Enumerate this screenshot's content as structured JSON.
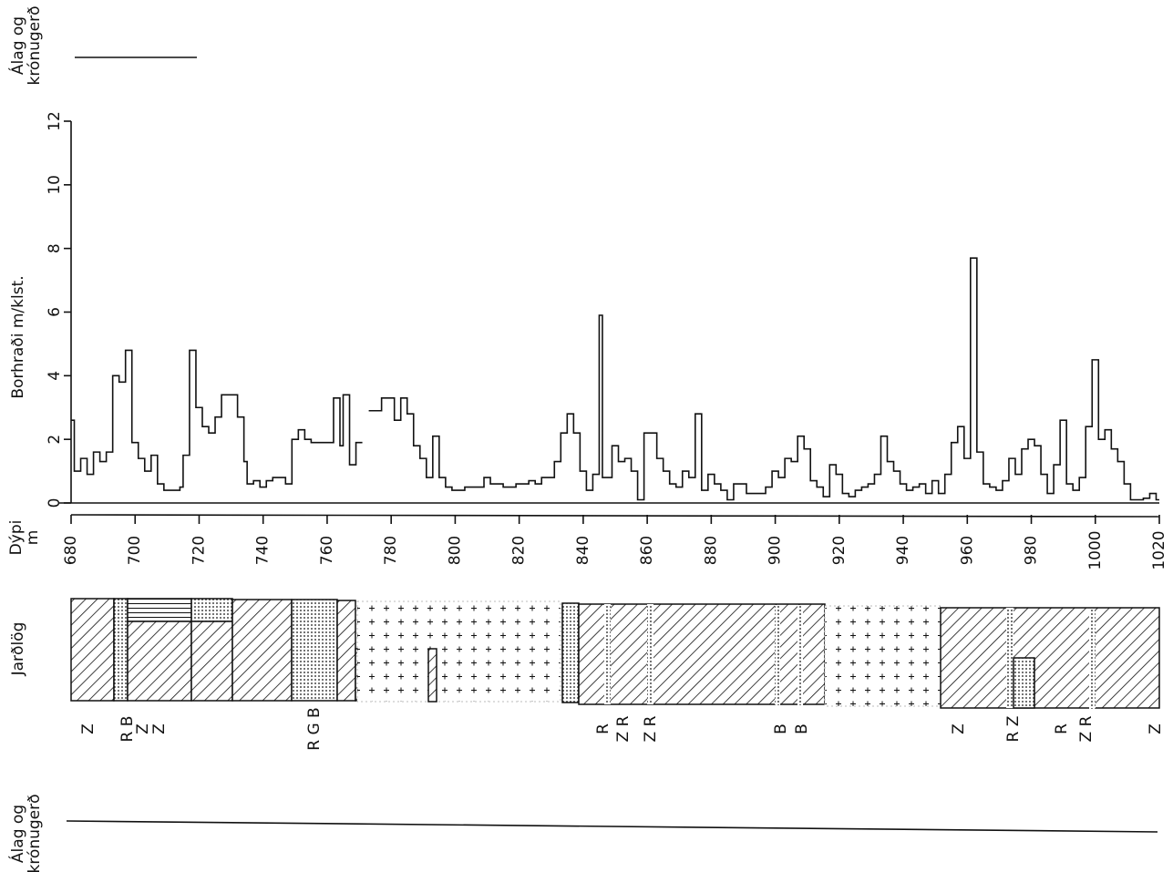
{
  "chart_data": {
    "type": "step",
    "y_label": "Borhraði m/klst.",
    "x_label": [
      "Dýpi",
      "m"
    ],
    "strata_label": "Jarðlög",
    "load_label_top": [
      "Álag og",
      "krónugerð"
    ],
    "load_label_bottom": [
      "Álag og",
      "krónugerð"
    ],
    "x": [
      680,
      681,
      683,
      685,
      687,
      689,
      691,
      693,
      695,
      697,
      699,
      701,
      703,
      705,
      707,
      709,
      714,
      715,
      717,
      719,
      721,
      723,
      725,
      727,
      732,
      734,
      735,
      737,
      739,
      741,
      743,
      747,
      749,
      751,
      753,
      755,
      762,
      764,
      765,
      767,
      769,
      771,
      773,
      777,
      781,
      783,
      785,
      787,
      789,
      791,
      793,
      795,
      797,
      799,
      803,
      805,
      809,
      811,
      815,
      819,
      823,
      825,
      827,
      831,
      833,
      835,
      837,
      839,
      841,
      843,
      845,
      846,
      849,
      851,
      853,
      855,
      857,
      859,
      863,
      865,
      867,
      869,
      871,
      873,
      875,
      877,
      879,
      881,
      883,
      885,
      887,
      891,
      893,
      897,
      899,
      901,
      903,
      905,
      907,
      909,
      911,
      913,
      915,
      917,
      919,
      921,
      923,
      925,
      927,
      929,
      931,
      933,
      935,
      937,
      939,
      941,
      943,
      945,
      947,
      949,
      951,
      953,
      955,
      957,
      959,
      961,
      963,
      965,
      967,
      969,
      971,
      973,
      975,
      977,
      979,
      981,
      983,
      985,
      987,
      989,
      991,
      993,
      995,
      997,
      999,
      1001,
      1003,
      1005,
      1007,
      1009,
      1011,
      1013,
      1015,
      1017,
      1019
    ],
    "values": [
      2.6,
      1.0,
      1.4,
      0.9,
      1.6,
      1.3,
      1.6,
      4.0,
      3.8,
      4.8,
      1.9,
      1.4,
      1.0,
      1.5,
      0.6,
      0.4,
      0.5,
      1.5,
      4.8,
      3.0,
      2.4,
      2.2,
      2.7,
      3.4,
      2.7,
      1.3,
      0.6,
      0.7,
      0.5,
      0.7,
      0.8,
      0.6,
      2.0,
      2.3,
      2.0,
      1.9,
      3.3,
      1.8,
      3.4,
      1.2,
      1.9,
      null,
      2.9,
      3.3,
      2.6,
      3.3,
      2.8,
      1.8,
      1.4,
      0.8,
      2.1,
      0.8,
      0.5,
      0.4,
      0.5,
      0.5,
      0.8,
      0.6,
      0.5,
      0.6,
      0.7,
      0.6,
      0.8,
      1.3,
      2.2,
      2.8,
      2.2,
      1.0,
      0.4,
      0.9,
      5.9,
      0.8,
      1.8,
      1.3,
      1.4,
      1.0,
      0.1,
      2.2,
      1.4,
      1.0,
      0.6,
      0.5,
      1.0,
      0.8,
      2.8,
      0.4,
      0.9,
      0.6,
      0.4,
      0.1,
      0.6,
      0.3,
      0.3,
      0.5,
      1.0,
      0.8,
      1.4,
      1.3,
      2.1,
      1.7,
      0.7,
      0.5,
      0.2,
      1.2,
      0.9,
      0.3,
      0.2,
      0.4,
      0.5,
      0.6,
      0.9,
      2.1,
      1.3,
      1.0,
      0.6,
      0.4,
      0.5,
      0.6,
      0.3,
      0.7,
      0.3,
      0.9,
      1.9,
      2.4,
      1.4,
      7.7,
      1.6,
      0.6,
      0.5,
      0.4,
      0.7,
      1.4,
      0.9,
      1.7,
      2.0,
      1.8,
      0.9,
      0.3,
      1.2,
      2.6,
      0.6,
      0.4,
      0.8,
      2.4,
      4.5,
      2.0,
      2.3,
      1.7,
      1.3,
      0.6,
      0.1,
      0.1,
      0.15,
      0.3,
      0.1
    ],
    "color": "#111111",
    "xlim": [
      680,
      1020
    ],
    "ylim": [
      0,
      12
    ],
    "xticks": [
      680,
      700,
      720,
      740,
      760,
      780,
      800,
      820,
      840,
      860,
      880,
      900,
      920,
      940,
      960,
      980,
      1000,
      1020
    ],
    "yticks": [
      0,
      2,
      4,
      6,
      8,
      10,
      12
    ],
    "grid": false,
    "lithology_codes": [
      "Z",
      "R B",
      "Z",
      "Z",
      "R G B",
      "R",
      "Z R",
      "Z R",
      "B",
      "B",
      "Z",
      "R Z",
      "R",
      "Z R",
      "Z"
    ]
  }
}
